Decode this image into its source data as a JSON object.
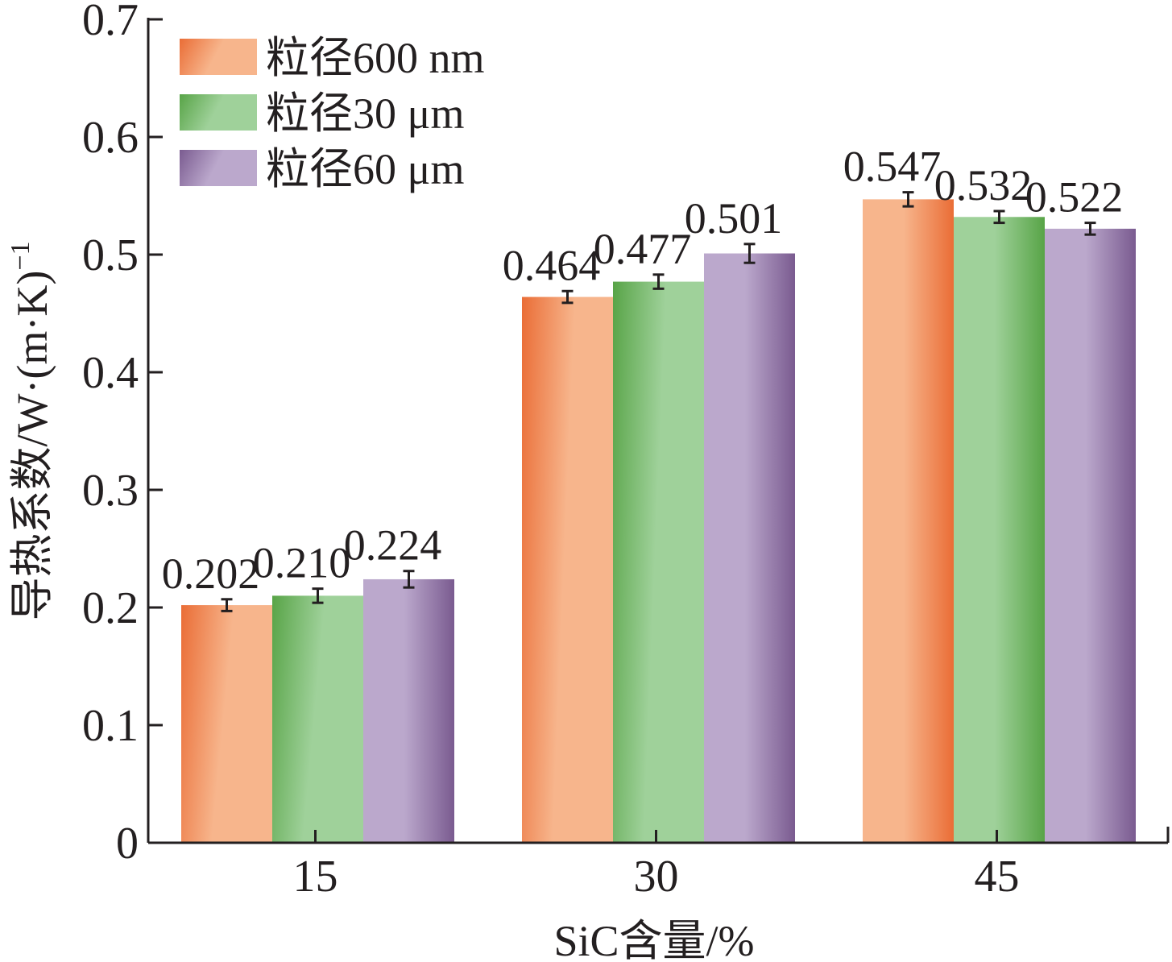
{
  "chart_data": {
    "type": "bar",
    "categories": [
      "15",
      "30",
      "45"
    ],
    "series": [
      {
        "name": "粒径600 nm",
        "values": [
          0.202,
          0.464,
          0.547
        ],
        "errors": [
          0.005,
          0.005,
          0.006
        ],
        "color_light": "#f7b58c",
        "color_dark": "#ea6d36"
      },
      {
        "name": "粒径30 μm",
        "values": [
          0.21,
          0.477,
          0.532
        ],
        "errors": [
          0.006,
          0.006,
          0.005
        ],
        "color_light": "#9fd19a",
        "color_dark": "#58a447"
      },
      {
        "name": "粒径60 μm",
        "values": [
          0.224,
          0.501,
          0.522
        ],
        "errors": [
          0.007,
          0.008,
          0.005
        ],
        "color_light": "#bba8cc",
        "color_dark": "#7a5b90"
      }
    ],
    "data_labels": [
      [
        "0.202",
        "0.464",
        "0.547"
      ],
      [
        "0.210",
        "0.477",
        "0.532"
      ],
      [
        "0.224",
        "0.501",
        "0.522"
      ]
    ],
    "yticks": [
      "0",
      "0.1",
      "0.2",
      "0.3",
      "0.4",
      "0.5",
      "0.6",
      "0.7"
    ],
    "ylim": [
      0,
      0.7
    ],
    "xlabel": "SiC含量/%",
    "ylabel_main": "导热系数/W·(m·K)",
    "ylabel_sup": "−1",
    "legend_position": "top-left",
    "grid": false
  }
}
